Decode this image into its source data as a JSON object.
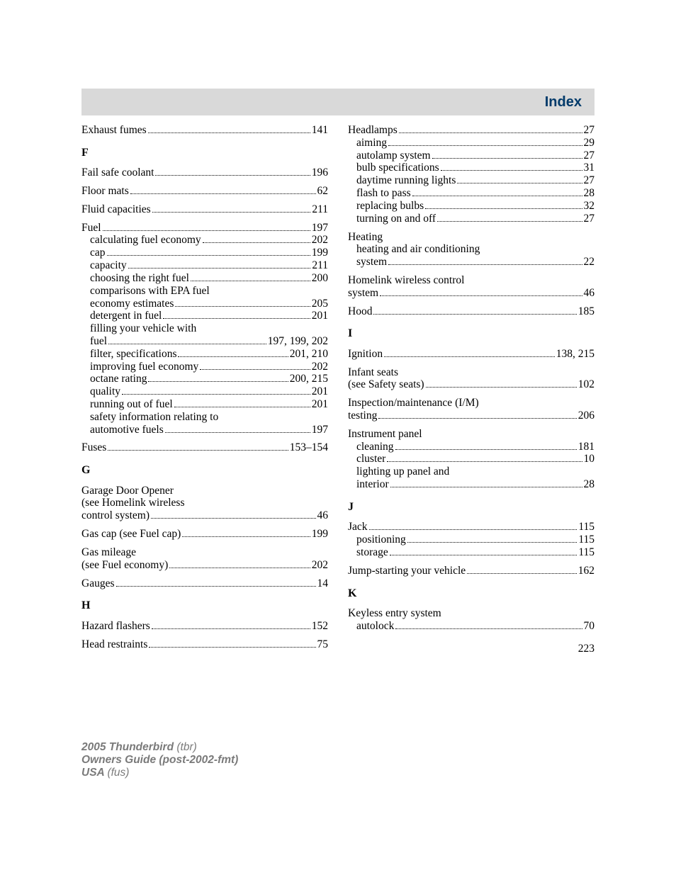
{
  "header": {
    "title": "Index"
  },
  "page_number": "223",
  "footer": {
    "line1_strong": "2005 Thunderbird ",
    "line1_ital": "(tbr)",
    "line2_strong": "Owners Guide (post-2002-fmt)",
    "line3_strong": "USA ",
    "line3_ital": "(fus)"
  },
  "left": {
    "exhaust": {
      "label": "Exhaust fumes",
      "page": "141"
    },
    "F": "F",
    "failsafe": {
      "label": "Fail safe coolant",
      "page": "196"
    },
    "floormats": {
      "label": "Floor mats",
      "page": "62"
    },
    "fluidcap": {
      "label": "Fluid capacities",
      "page": "211"
    },
    "fuel": {
      "label": "Fuel",
      "page": "197"
    },
    "fuel_sub": [
      {
        "label": "calculating fuel economy",
        "page": "202"
      },
      {
        "label": "cap",
        "page": "199"
      },
      {
        "label": "capacity",
        "page": "211"
      },
      {
        "label": "choosing the right fuel",
        "page": "200"
      },
      {
        "label": "comparisons with EPA fuel",
        "cont": true
      },
      {
        "label": "economy estimates",
        "page": "205"
      },
      {
        "label": "detergent in fuel",
        "page": "201"
      },
      {
        "label": "filling your vehicle with",
        "cont": true
      },
      {
        "label": "fuel",
        "page": "197, 199, 202"
      },
      {
        "label": "filter, specifications",
        "page": "201, 210"
      },
      {
        "label": "improving fuel economy",
        "page": "202"
      },
      {
        "label": "octane rating",
        "page": "200, 215"
      },
      {
        "label": "quality",
        "page": "201"
      },
      {
        "label": "running out of fuel",
        "page": "201"
      },
      {
        "label": "safety information relating to",
        "cont": true
      },
      {
        "label": "automotive fuels",
        "page": "197"
      }
    ],
    "fuses": {
      "label": "Fuses",
      "page": "153–154"
    },
    "G": "G",
    "garage": {
      "l1": "Garage Door Opener",
      "l2": "(see Homelink wireless",
      "l3": "control system)",
      "page": "46"
    },
    "gascap": {
      "label": "Gas cap (see Fuel cap)",
      "page": "199"
    },
    "gasmileage": {
      "l1": "Gas mileage",
      "l2": "(see Fuel economy)",
      "page": "202"
    },
    "gauges": {
      "label": "Gauges",
      "page": "14"
    },
    "H": "H",
    "hazard": {
      "label": "Hazard flashers",
      "page": "152"
    },
    "headrest": {
      "label": "Head restraints",
      "page": "75"
    }
  },
  "right": {
    "headlamps": {
      "label": "Headlamps",
      "page": "27"
    },
    "headlamps_sub": [
      {
        "label": "aiming",
        "page": "29"
      },
      {
        "label": "autolamp system",
        "page": "27"
      },
      {
        "label": "bulb specifications",
        "page": "31"
      },
      {
        "label": "daytime running lights",
        "page": "27"
      },
      {
        "label": "flash to pass",
        "page": "28"
      },
      {
        "label": "replacing bulbs",
        "page": "32"
      },
      {
        "label": "turning on and off",
        "page": "27"
      }
    ],
    "heating": {
      "l1": "Heating",
      "l2": "heating and air conditioning",
      "l3": "system",
      "page": "22"
    },
    "homelink": {
      "l1": "Homelink wireless control",
      "l2": "system",
      "page": "46"
    },
    "hood": {
      "label": "Hood",
      "page": "185"
    },
    "I": "I",
    "ignition": {
      "label": "Ignition",
      "page": "138, 215"
    },
    "infant": {
      "l1": "Infant seats",
      "l2": "(see Safety seats)",
      "page": "102"
    },
    "inspection": {
      "l1": "Inspection/maintenance (I/M)",
      "l2": "testing",
      "page": "206"
    },
    "instrument": {
      "label": "Instrument panel"
    },
    "instrument_sub": [
      {
        "label": "cleaning",
        "page": "181"
      },
      {
        "label": "cluster",
        "page": "10"
      },
      {
        "label": "lighting up panel and",
        "cont": true
      },
      {
        "label": "interior",
        "page": "28"
      }
    ],
    "J": "J",
    "jack": {
      "label": "Jack",
      "page": "115"
    },
    "jack_sub": [
      {
        "label": "positioning",
        "page": "115"
      },
      {
        "label": "storage",
        "page": "115"
      }
    ],
    "jumpstart": {
      "label": "Jump-starting your vehicle",
      "page": "162"
    },
    "K": "K",
    "keyless": {
      "label": "Keyless entry system"
    },
    "keyless_sub": [
      {
        "label": "autolock",
        "page": "70"
      }
    ]
  }
}
